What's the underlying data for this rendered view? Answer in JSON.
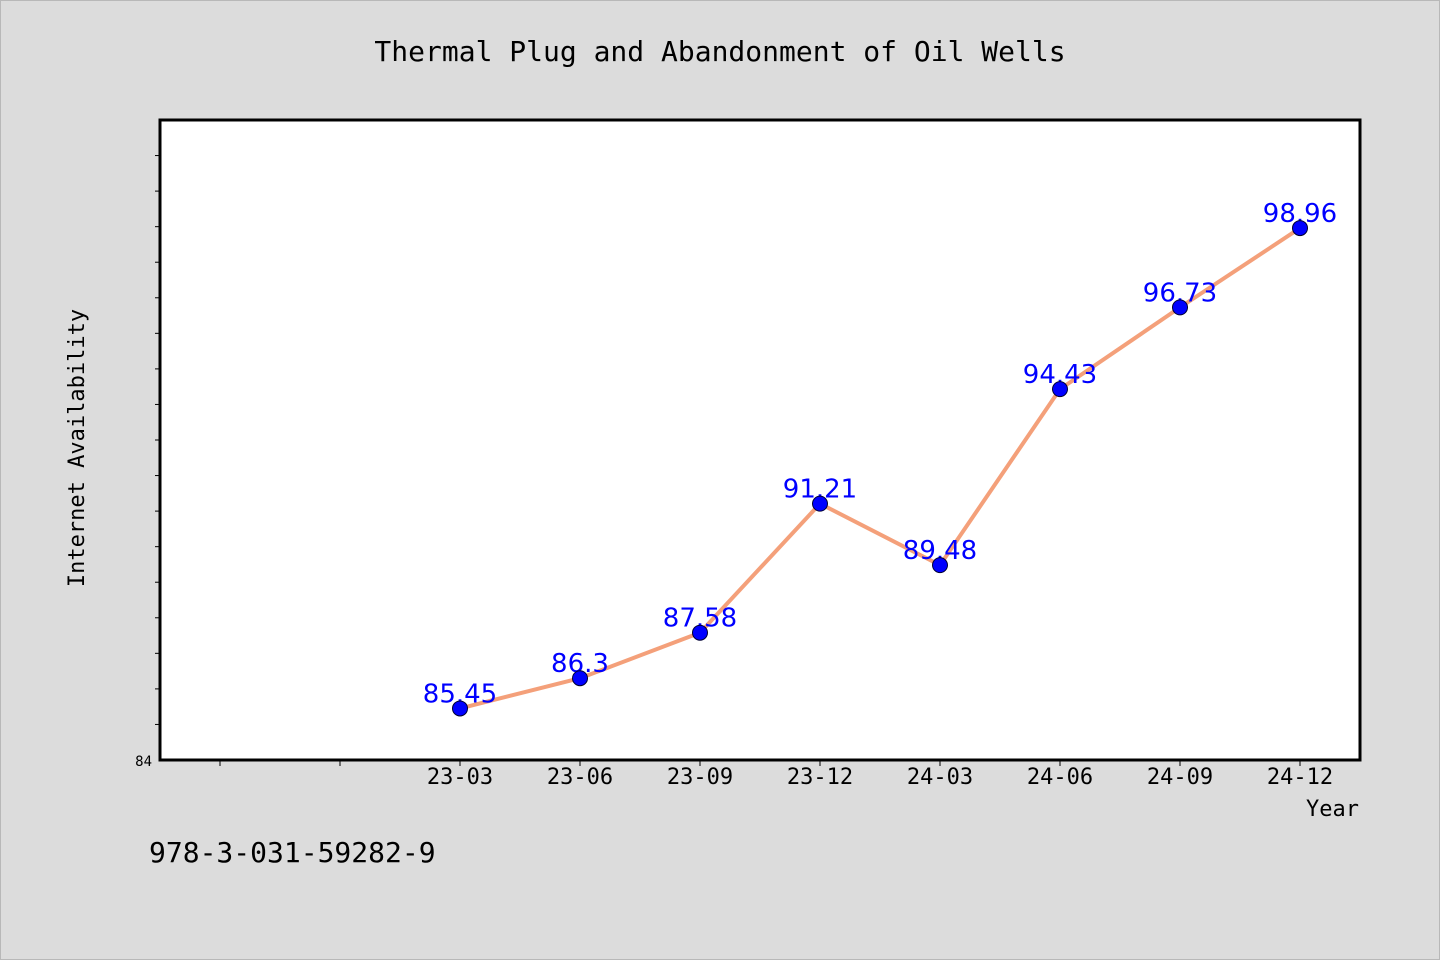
{
  "chart_data": {
    "type": "line",
    "title": "Thermal Plug and Abandonment of Oil Wells",
    "xlabel": "Year",
    "ylabel": "Internet Availability",
    "categories": [
      "23-03",
      "23-06",
      "23-09",
      "23-12",
      "24-03",
      "24-06",
      "24-09",
      "24-12"
    ],
    "values": [
      85.45,
      86.3,
      87.58,
      91.21,
      89.48,
      94.43,
      96.73,
      98.96
    ],
    "data_labels": [
      "85.45",
      "86.3",
      "87.58",
      "91.21",
      "89.48",
      "94.43",
      "96.73",
      "98.96"
    ],
    "ylim": [
      84,
      102
    ],
    "y_tick_label_shown": "84",
    "grid": false,
    "line_color": "#f4a07a",
    "marker_color": "#0000ff",
    "label_color": "#0000ff"
  },
  "footer_text": "978-3-031-59282-9",
  "colors": {
    "background": "#dcdcdc",
    "plot_area": "#ffffff"
  }
}
